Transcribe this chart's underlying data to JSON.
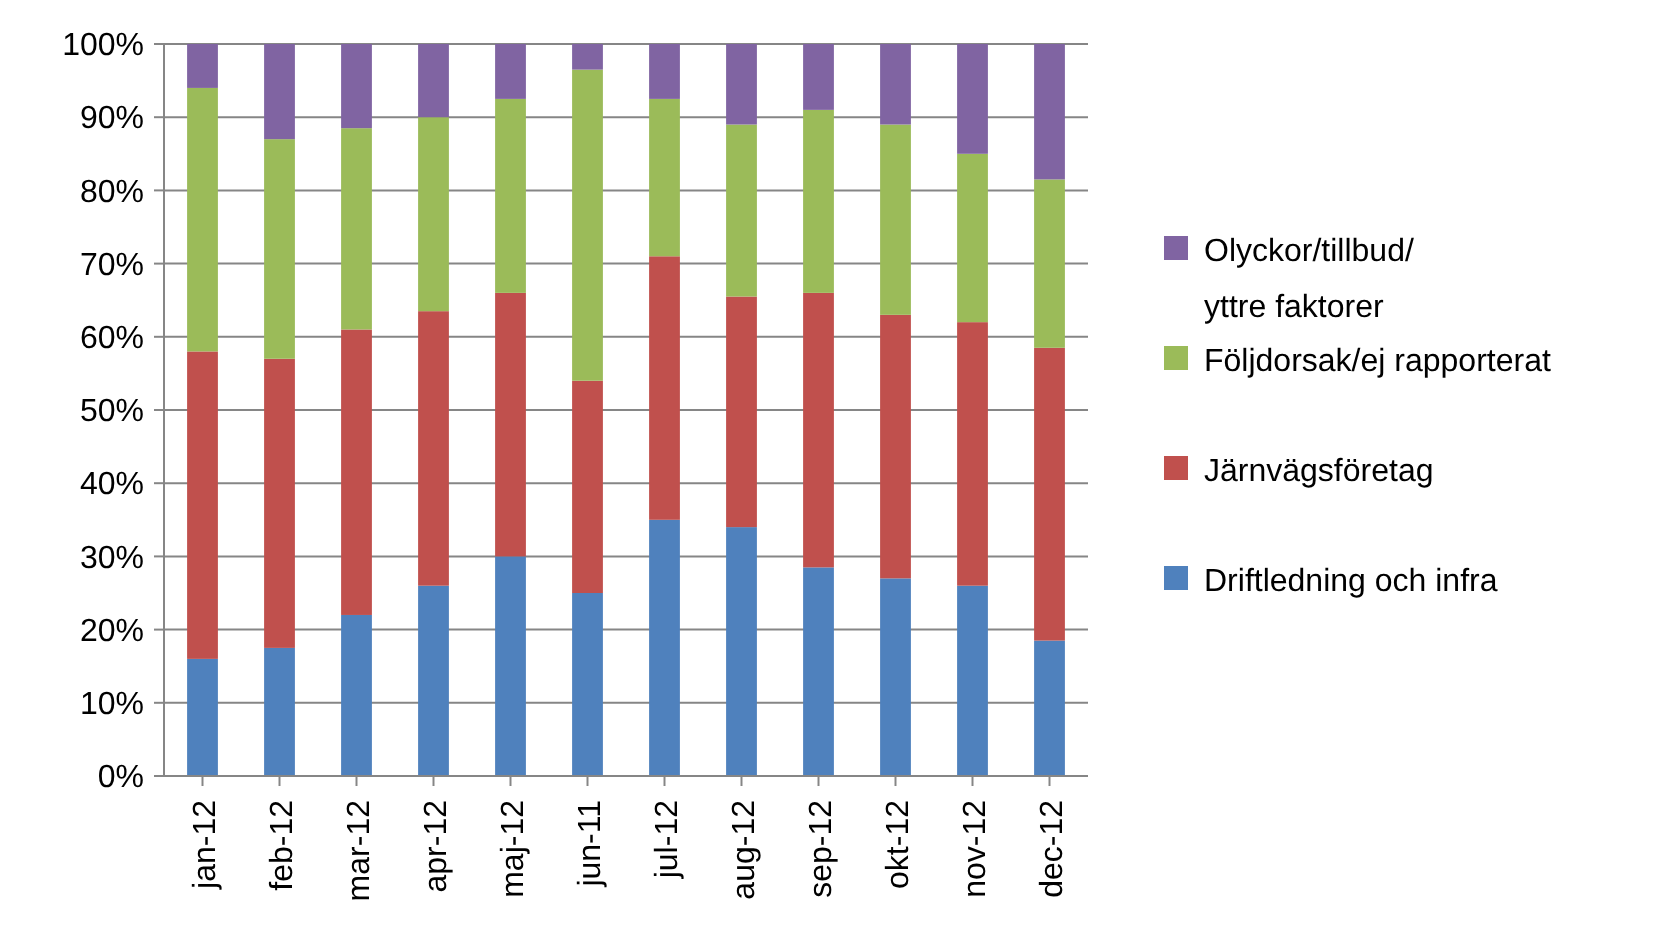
{
  "chart_data": {
    "type": "bar",
    "stacked": true,
    "categories": [
      "jan-12",
      "feb-12",
      "mar-12",
      "apr-12",
      "maj-12",
      "jun-11",
      "jul-12",
      "aug-12",
      "sep-12",
      "okt-12",
      "nov-12",
      "dec-12"
    ],
    "series": [
      {
        "name": "Driftledning och infra",
        "color": "#4f81bd",
        "values": [
          16,
          17.5,
          22,
          26,
          30,
          25,
          35,
          34,
          28.5,
          27,
          26,
          18.5
        ]
      },
      {
        "name": "Järnvägsföretag",
        "color": "#c0504d",
        "values": [
          42,
          39.5,
          39,
          37.5,
          36,
          29,
          36,
          31.5,
          37.5,
          36,
          36,
          40
        ]
      },
      {
        "name": "Följdorsak/ej rapporterat",
        "color": "#9bbb59",
        "values": [
          36,
          30,
          27.5,
          26.5,
          26.5,
          42.5,
          21.5,
          23.5,
          25,
          26,
          23,
          23
        ]
      },
      {
        "name": "Olyckor/tillbud/yttre faktorer",
        "color": "#8064a2",
        "values": [
          6,
          13,
          11.5,
          10,
          7.5,
          3.5,
          7.5,
          11,
          9,
          11,
          15,
          18.5
        ]
      }
    ],
    "ylim": [
      0,
      100
    ],
    "yticks": [
      {
        "value": 0,
        "label": "0%"
      },
      {
        "value": 10,
        "label": "10%"
      },
      {
        "value": 20,
        "label": "20%"
      },
      {
        "value": 30,
        "label": "30%"
      },
      {
        "value": 40,
        "label": "40%"
      },
      {
        "value": 50,
        "label": "50%"
      },
      {
        "value": 60,
        "label": "60%"
      },
      {
        "value": 70,
        "label": "70%"
      },
      {
        "value": 80,
        "label": "80%"
      },
      {
        "value": 90,
        "label": "90%"
      },
      {
        "value": 100,
        "label": "100%"
      }
    ],
    "grid": "y",
    "legend": "right"
  }
}
